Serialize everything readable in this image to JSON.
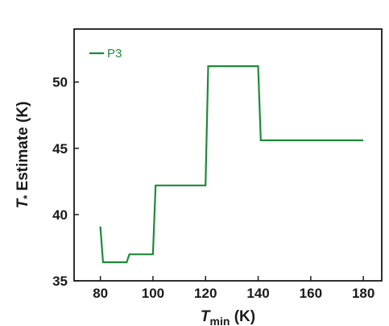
{
  "chart_data": {
    "type": "line",
    "xlabel": {
      "main": "T",
      "sub": "min",
      "unit": " (K)"
    },
    "ylabel": {
      "main": "T",
      "sub": "*",
      "unit": " Estimate (K)"
    },
    "xlim": [
      70,
      187
    ],
    "ylim": [
      35,
      54
    ],
    "xticks": [
      80,
      100,
      120,
      140,
      160,
      180
    ],
    "yticks": [
      35,
      40,
      45,
      50
    ],
    "grid": false,
    "legend_position": "top-left",
    "series": [
      {
        "name": "P3",
        "color": "#1e8a3a",
        "x": [
          80,
          81,
          90,
          91,
          100,
          101,
          120,
          121,
          140,
          141,
          180
        ],
        "y": [
          39.1,
          36.4,
          36.4,
          37.0,
          37.0,
          42.2,
          42.2,
          51.2,
          51.2,
          45.6,
          45.6
        ]
      }
    ]
  }
}
